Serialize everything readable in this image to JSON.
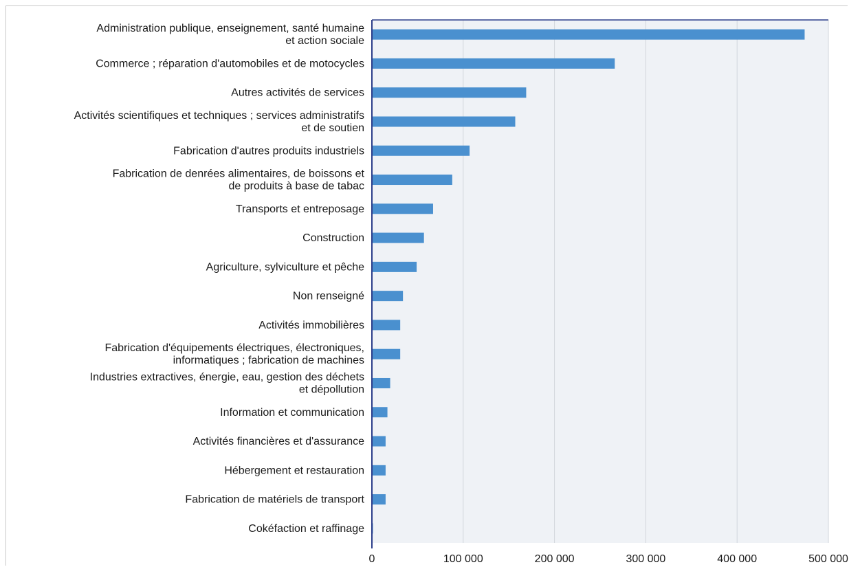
{
  "chart_data": {
    "type": "bar",
    "orientation": "horizontal",
    "title": "",
    "xlabel": "",
    "ylabel": "",
    "xlim": [
      0,
      500000
    ],
    "grid": true,
    "colors": {
      "bar": "#4a90cf",
      "plot_bg": "#eff2f6",
      "axis": "#2c3e8a",
      "grid": "#d2d6dc"
    },
    "ticks": [
      {
        "value": 0,
        "label": "0"
      },
      {
        "value": 100000,
        "label": "100 000"
      },
      {
        "value": 200000,
        "label": "200 000"
      },
      {
        "value": 300000,
        "label": "300 000"
      },
      {
        "value": 400000,
        "label": "400 000"
      },
      {
        "value": 500000,
        "label": "500 000"
      }
    ],
    "categories": [
      [
        "Administration publique, enseignement, santé humaine",
        "et action sociale"
      ],
      [
        "Commerce ; réparation d'automobiles et de motocycles"
      ],
      [
        "Autres activités de services"
      ],
      [
        "Activités scientifiques et techniques ; services administratifs",
        "et de soutien"
      ],
      [
        "Fabrication d'autres produits industriels"
      ],
      [
        "Fabrication de denrées alimentaires, de boissons et",
        "de produits à base de tabac"
      ],
      [
        "Transports et entreposage"
      ],
      [
        "Construction"
      ],
      [
        "Agriculture, sylviculture et pêche"
      ],
      [
        "Non renseigné"
      ],
      [
        "Activités immobilières"
      ],
      [
        "Fabrication d'équipements électriques, électroniques,",
        "informatiques ; fabrication de machines"
      ],
      [
        "Industries extractives, énergie, eau, gestion des déchets",
        "et dépollution"
      ],
      [
        "Information et communication"
      ],
      [
        "Activités financières et d'assurance"
      ],
      [
        "Hébergement et restauration"
      ],
      [
        "Fabrication de matériels de transport"
      ],
      [
        "Cokéfaction et raffinage"
      ]
    ],
    "values": [
      474000,
      266000,
      169000,
      157000,
      107000,
      88000,
      67000,
      57000,
      49000,
      34000,
      31000,
      31000,
      20000,
      17000,
      15000,
      15000,
      15000,
      1000
    ]
  }
}
